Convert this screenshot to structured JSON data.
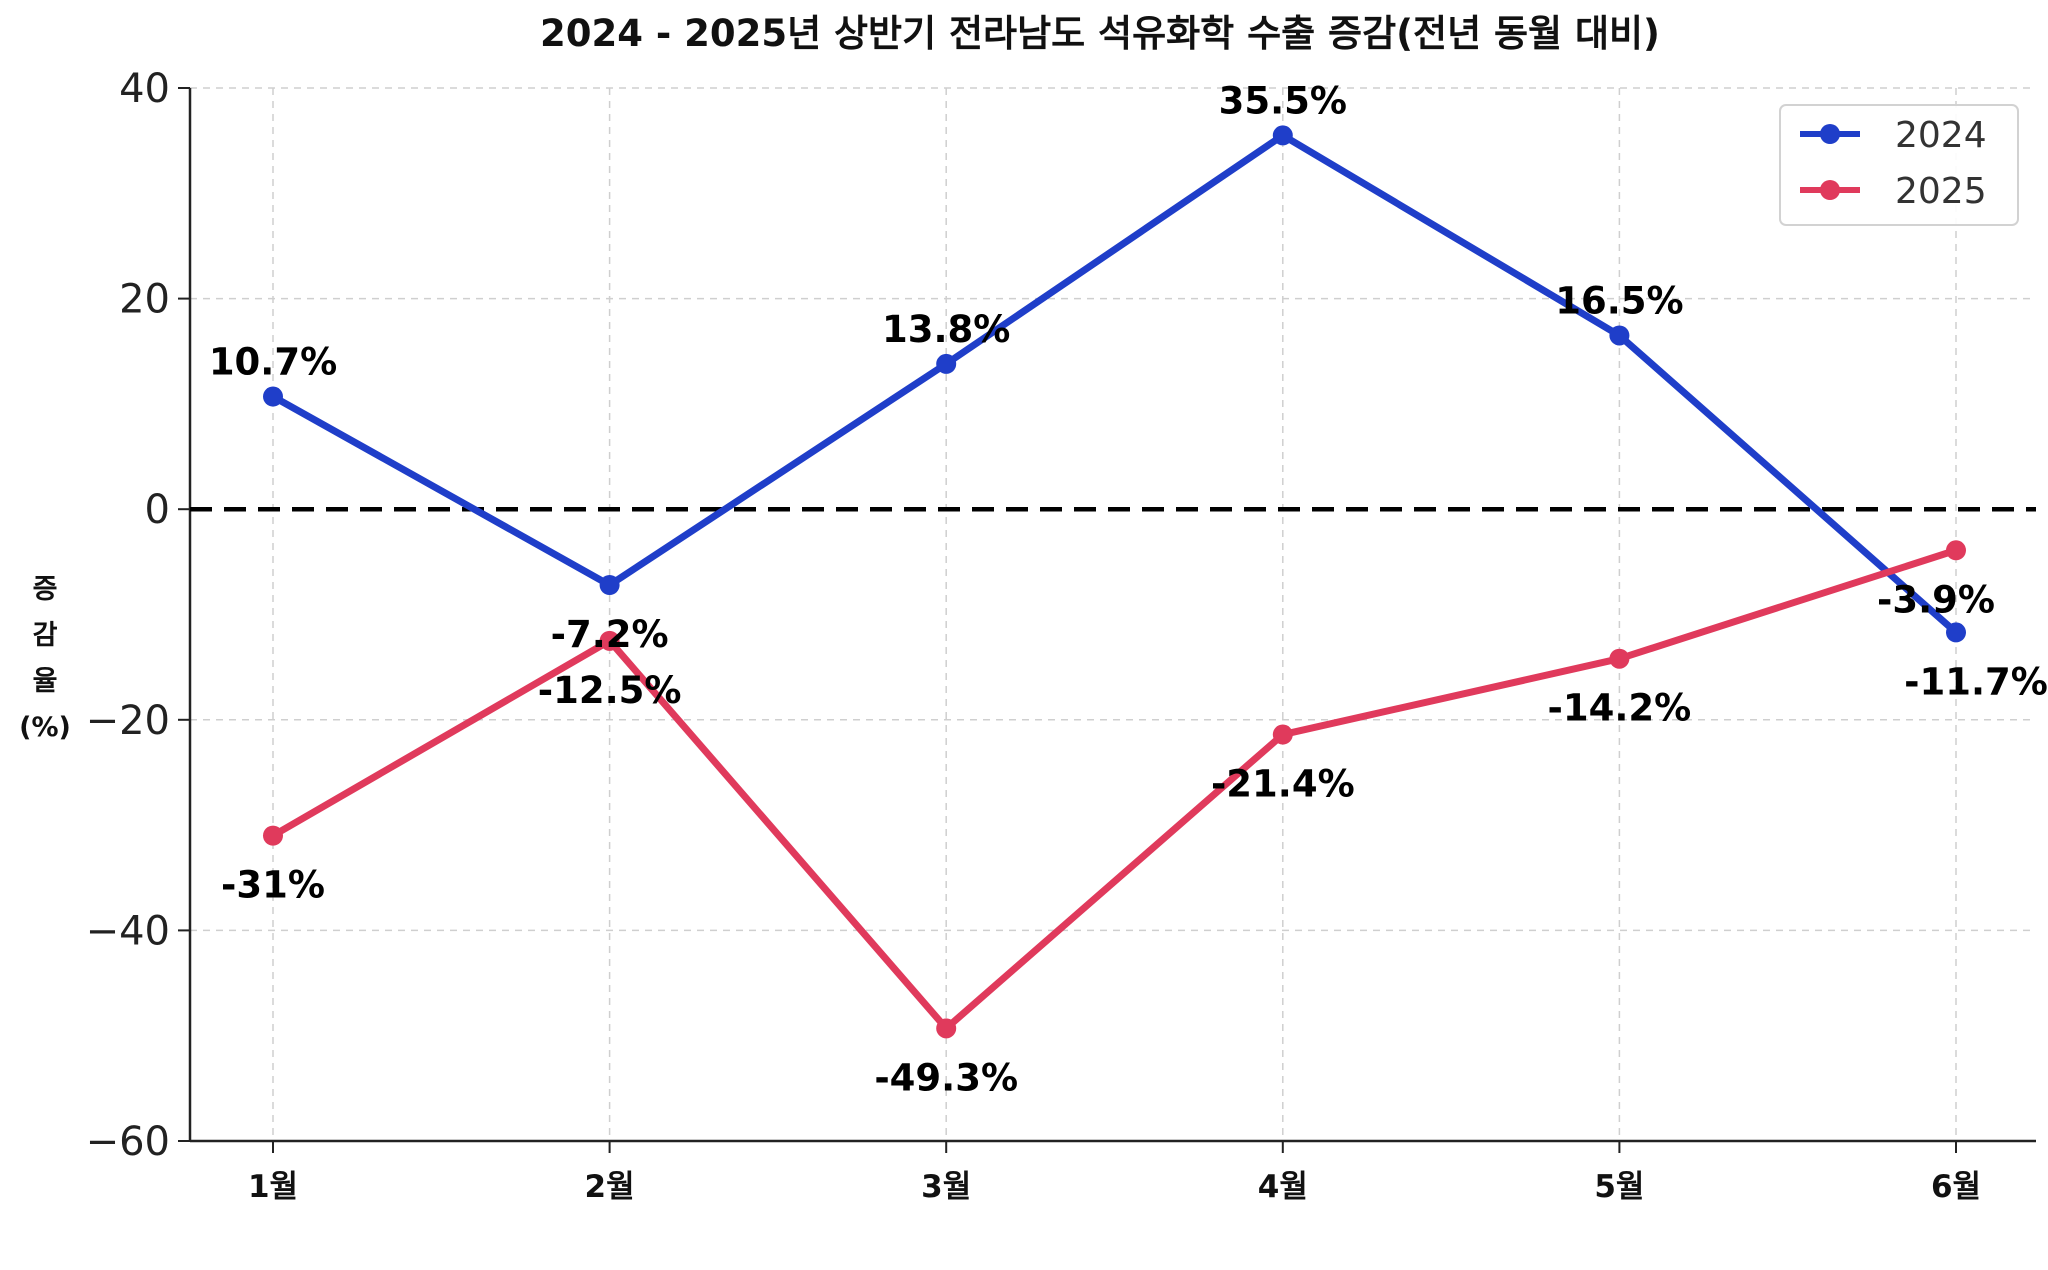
{
  "chart_data": {
    "type": "line",
    "title": "2024 - 2025년 상반기 전라남도 석유화학 수출 증감(전년 동월 대비)",
    "xlabel": "",
    "ylabel": "증감율(%)",
    "categories": [
      "1월",
      "2월",
      "3월",
      "4월",
      "5월",
      "6월"
    ],
    "ylim": [
      -60,
      40
    ],
    "yticks": [
      40,
      20,
      0,
      -20,
      -40,
      -60
    ],
    "ytick_labels": [
      "40",
      "20",
      "0",
      "−20",
      "−40",
      "−60"
    ],
    "series": [
      {
        "name": "2024",
        "color": "#1f3ec9",
        "values": [
          10.7,
          -7.2,
          13.8,
          35.5,
          16.5,
          -11.7
        ],
        "labels": [
          "10.7%",
          "-7.2%",
          "13.8%",
          "35.5%",
          "16.5%",
          "-11.7%"
        ]
      },
      {
        "name": "2025",
        "color": "#e03a5c",
        "values": [
          -31,
          -12.5,
          -49.3,
          -21.4,
          -14.2,
          -3.9
        ],
        "labels": [
          "-31%",
          "-12.5%",
          "-49.3%",
          "-21.4%",
          "-14.2%",
          "-3.9%"
        ]
      }
    ],
    "reference_line": {
      "y": 0,
      "style": "dashed",
      "color": "#000000"
    },
    "grid": true,
    "legend_position": "top-right"
  }
}
